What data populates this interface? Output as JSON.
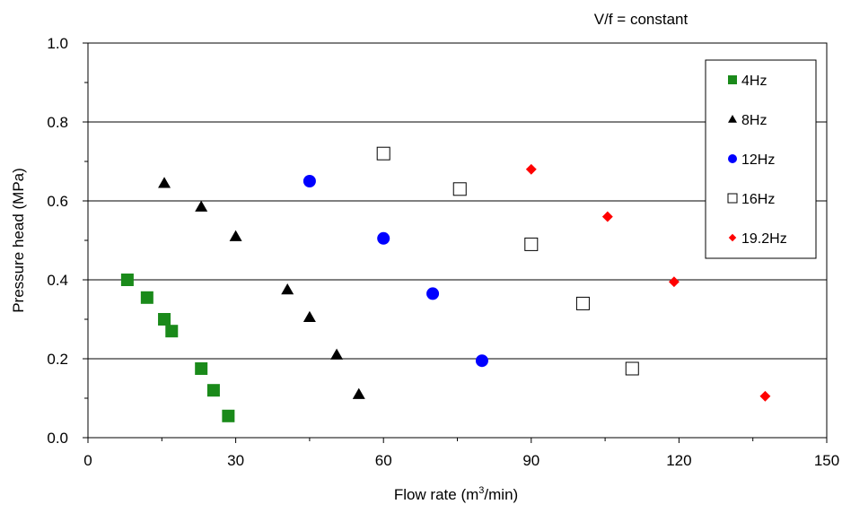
{
  "chart_data": {
    "type": "scatter",
    "title": "",
    "annotation": "V/f = constant",
    "xlabel": "Flow rate (m",
    "xlabel_sup": "3",
    "xlabel_tail": "/min)",
    "ylabel": "Pressure head (MPa)",
    "xlim": [
      0,
      150
    ],
    "ylim": [
      0.0,
      1.0
    ],
    "x_ticks": [
      "0",
      "30",
      "60",
      "90",
      "120",
      "150"
    ],
    "y_ticks": [
      "0.0",
      "0.2",
      "0.4",
      "0.6",
      "0.8",
      "1.0"
    ],
    "grid": "horizontal",
    "legend_position": "top-right",
    "series": [
      {
        "name": "4Hz",
        "marker": "square",
        "color": "#1a8a1a",
        "points": [
          [
            8,
            0.4
          ],
          [
            12,
            0.355
          ],
          [
            15.5,
            0.3
          ],
          [
            17,
            0.27
          ],
          [
            23,
            0.175
          ],
          [
            25.5,
            0.12
          ],
          [
            28.5,
            0.055
          ]
        ]
      },
      {
        "name": "8Hz",
        "marker": "triangle",
        "color": "#000000",
        "points": [
          [
            15.5,
            0.645
          ],
          [
            23,
            0.585
          ],
          [
            30,
            0.51
          ],
          [
            40.5,
            0.375
          ],
          [
            45,
            0.305
          ],
          [
            50.5,
            0.21
          ],
          [
            55,
            0.11
          ]
        ]
      },
      {
        "name": "12Hz",
        "marker": "circle",
        "color": "#0000ff",
        "points": [
          [
            45,
            0.65
          ],
          [
            60,
            0.505
          ],
          [
            70,
            0.365
          ],
          [
            80,
            0.195
          ]
        ]
      },
      {
        "name": "16Hz",
        "marker": "open-square",
        "color": "#000000",
        "points": [
          [
            60,
            0.72
          ],
          [
            75.5,
            0.63
          ],
          [
            90,
            0.49
          ],
          [
            100.5,
            0.34
          ],
          [
            110.5,
            0.175
          ]
        ]
      },
      {
        "name": "19.2Hz",
        "marker": "diamond",
        "color": "#ff0000",
        "points": [
          [
            90,
            0.68
          ],
          [
            105.5,
            0.56
          ],
          [
            119,
            0.395
          ],
          [
            137.5,
            0.105
          ]
        ]
      }
    ]
  }
}
